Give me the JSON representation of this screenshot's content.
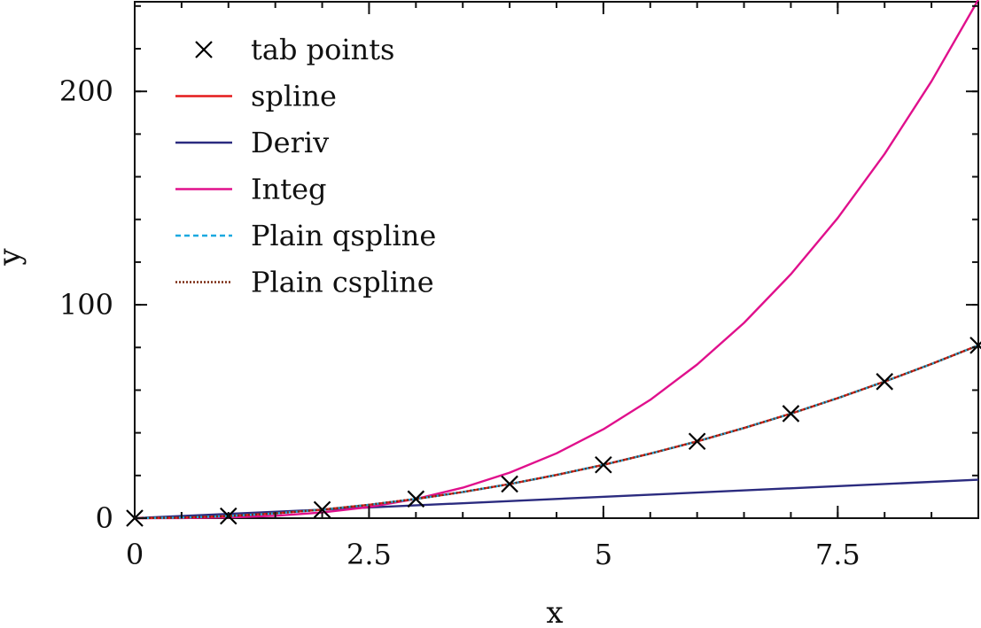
{
  "chart_data": {
    "type": "line",
    "title": "",
    "xlabel": "x",
    "ylabel": "y",
    "xlim": [
      0,
      9
    ],
    "ylim": [
      0,
      242
    ],
    "xticks": [
      0,
      2.5,
      5,
      7.5
    ],
    "xtick_labels": [
      "0",
      "2.5",
      "5",
      "7.5"
    ],
    "yticks": [
      0,
      100,
      200
    ],
    "ytick_labels": [
      "0",
      "100",
      "200"
    ],
    "grid": false,
    "legend_position": "top-left",
    "series": [
      {
        "name": "tab points",
        "style": "markers",
        "marker": "x",
        "color": "#000000",
        "x": [
          0,
          1,
          2,
          3,
          4,
          5,
          6,
          7,
          8,
          9
        ],
        "y": [
          0,
          1,
          4,
          9,
          16,
          25,
          36,
          49,
          64,
          81
        ]
      },
      {
        "name": "spline",
        "style": "solid",
        "color": "#e41a1c",
        "x": [
          0,
          0.5,
          1,
          1.5,
          2,
          2.5,
          3,
          3.5,
          4,
          4.5,
          5,
          5.5,
          6,
          6.5,
          7,
          7.5,
          8,
          8.5,
          9
        ],
        "y": [
          0,
          0.25,
          1,
          2.25,
          4,
          6.25,
          9,
          12.25,
          16,
          20.25,
          25,
          30.25,
          36,
          42.25,
          49,
          56.25,
          64,
          72.25,
          81
        ]
      },
      {
        "name": "Deriv",
        "style": "solid",
        "color": "#2b2b7f",
        "x": [
          0,
          9
        ],
        "y": [
          0,
          18
        ]
      },
      {
        "name": "Integ",
        "style": "solid",
        "color": "#e0108c",
        "x": [
          0,
          0.5,
          1,
          1.5,
          2,
          2.5,
          3,
          3.5,
          4,
          4.5,
          5,
          5.5,
          6,
          6.5,
          7,
          7.5,
          8,
          8.5,
          9
        ],
        "y": [
          0,
          0.04,
          0.33,
          1.13,
          2.67,
          5.21,
          9,
          14.29,
          21.33,
          30.38,
          41.67,
          55.46,
          72,
          91.54,
          114.33,
          140.63,
          170.67,
          204.71,
          243
        ]
      },
      {
        "name": "Plain qspline",
        "style": "dashed",
        "color": "#1ba9e0",
        "x": [
          0,
          0.5,
          1,
          1.5,
          2,
          2.5,
          3,
          3.5,
          4,
          4.5,
          5,
          5.5,
          6,
          6.5,
          7,
          7.5,
          8,
          8.5,
          9
        ],
        "y": [
          0,
          0.25,
          1,
          2.25,
          4,
          6.25,
          9,
          12.25,
          16,
          20.25,
          25,
          30.25,
          36,
          42.25,
          49,
          56.25,
          64,
          72.25,
          81
        ]
      },
      {
        "name": "Plain cspline",
        "style": "dotted",
        "color": "#7a2a10",
        "x": [
          0,
          0.5,
          1,
          1.5,
          2,
          2.5,
          3,
          3.5,
          4,
          4.5,
          5,
          5.5,
          6,
          6.5,
          7,
          7.5,
          8,
          8.5,
          9
        ],
        "y": [
          0,
          0.25,
          1,
          2.25,
          4,
          6.25,
          9,
          12.25,
          16,
          20.25,
          25,
          30.25,
          36,
          42.25,
          49,
          56.25,
          64,
          72.25,
          81
        ]
      }
    ]
  }
}
